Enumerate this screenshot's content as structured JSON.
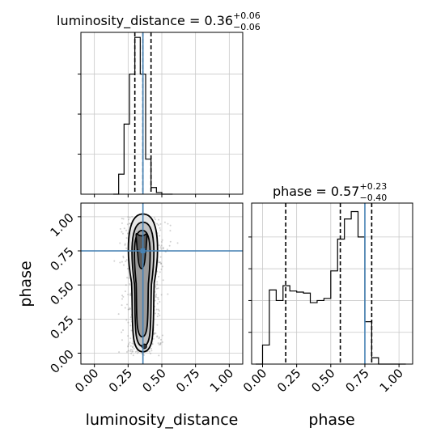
{
  "chart_data": [
    {
      "type": "histogram",
      "panel": "luminosity_distance-marginal",
      "title": "luminosity_distance = 0.36",
      "title_sup": "+0.06",
      "title_sub": "−0.06",
      "xlim": [
        -0.1,
        1.1
      ],
      "bin_edges": [
        0.14,
        0.18,
        0.22,
        0.26,
        0.3,
        0.34,
        0.38,
        0.42,
        0.46,
        0.5,
        0.54,
        0.58
      ],
      "counts": [
        0,
        0.6,
        2.1,
        3.6,
        4.7,
        3.6,
        1.05,
        0.2,
        0.05,
        0,
        0
      ],
      "ylim": [
        0,
        4.85
      ],
      "quantiles": [
        0.3,
        0.36,
        0.42
      ],
      "truth": 0.36,
      "grid": true
    },
    {
      "type": "scatter",
      "panel": "2d-density",
      "xlabel": "luminosity_distance",
      "ylabel": "phase",
      "xlim": [
        -0.1,
        1.1
      ],
      "ylim": [
        -0.08,
        1.1
      ],
      "x_ticks": [
        "0.00",
        "0.25",
        "0.50",
        "0.75",
        "1.00"
      ],
      "y_ticks": [
        "0.00",
        "0.25",
        "0.50",
        "0.75",
        "1.00"
      ],
      "truth": [
        0.36,
        0.75
      ],
      "contour_levels": [
        "0.5-sigma",
        "1-sigma",
        "1.5-sigma",
        "2-sigma"
      ],
      "grid": true
    },
    {
      "type": "histogram",
      "panel": "phase-marginal",
      "title": "phase = 0.57",
      "title_sup": "+0.23",
      "title_sub": "−0.40",
      "xlim": [
        -0.08,
        1.1
      ],
      "bin_edges": [
        -0.05,
        0.0,
        0.05,
        0.1,
        0.15,
        0.2,
        0.25,
        0.3,
        0.35,
        0.4,
        0.45,
        0.5,
        0.55,
        0.6,
        0.65,
        0.7,
        0.75,
        0.8,
        0.85,
        0.9,
        0.95,
        1.0,
        1.05
      ],
      "counts": [
        0,
        0.9,
        3.5,
        3.0,
        3.7,
        3.45,
        3.4,
        3.35,
        2.9,
        3.0,
        3.1,
        4.4,
        5.9,
        6.85,
        7.2,
        6.0,
        2.0,
        0.3,
        0,
        0,
        0,
        0
      ],
      "ylim": [
        0,
        7.6
      ],
      "quantiles": [
        0.17,
        0.57,
        0.8
      ],
      "truth": 0.75,
      "x_ticks": [
        "0.00",
        "0.25",
        "0.50",
        "0.75",
        "1.00"
      ],
      "xlabel": "phase",
      "grid": true
    }
  ],
  "colors": {
    "truth": "#4682b4",
    "hist": "#000000",
    "grid": "#c8c8c8",
    "points": "#7a7a7a"
  }
}
